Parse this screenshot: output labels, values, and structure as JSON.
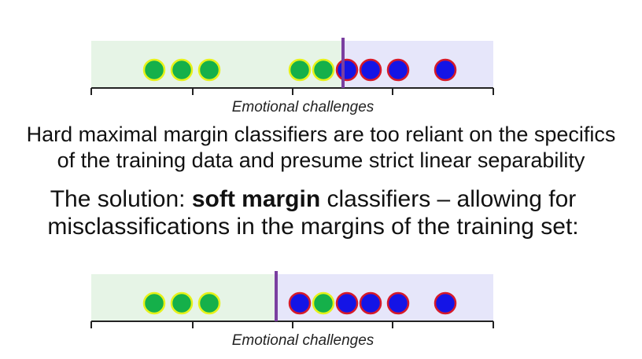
{
  "colors": {
    "green_region": "#e6f4e6",
    "blue_region": "#e6e6fa",
    "boundary": "#7a3fa0",
    "green_fill": "#15b04a",
    "green_stroke": "#e6f21a",
    "blue_fill": "#1414e6",
    "blue_stroke": "#d61a2a",
    "axis": "#222222"
  },
  "top_diagram": {
    "axis_label": "Emotional challenges",
    "green_points": [
      196,
      231,
      266,
      381,
      411
    ],
    "blue_points": [
      441,
      471,
      506,
      566
    ],
    "boundary_x": 436,
    "region_left": 116,
    "region_right": 627
  },
  "text": {
    "hard_line_1": "Hard maximal margin classifiers are too reliant on the specifics",
    "hard_line_2": "of the training data and presume strict linear separability",
    "soft_prefix": "The solution: ",
    "soft_bold": "soft margin",
    "soft_suffix": " classifiers – allowing for",
    "soft_line_2": "misclassifications in the margins of the training set:"
  },
  "bottom_diagram": {
    "axis_label": "Emotional challenges",
    "green_points": [
      196,
      231,
      266,
      411
    ],
    "blue_points": [
      381,
      441,
      471,
      506,
      566
    ],
    "boundary_x": 351,
    "region_left": 116,
    "region_right": 627
  }
}
